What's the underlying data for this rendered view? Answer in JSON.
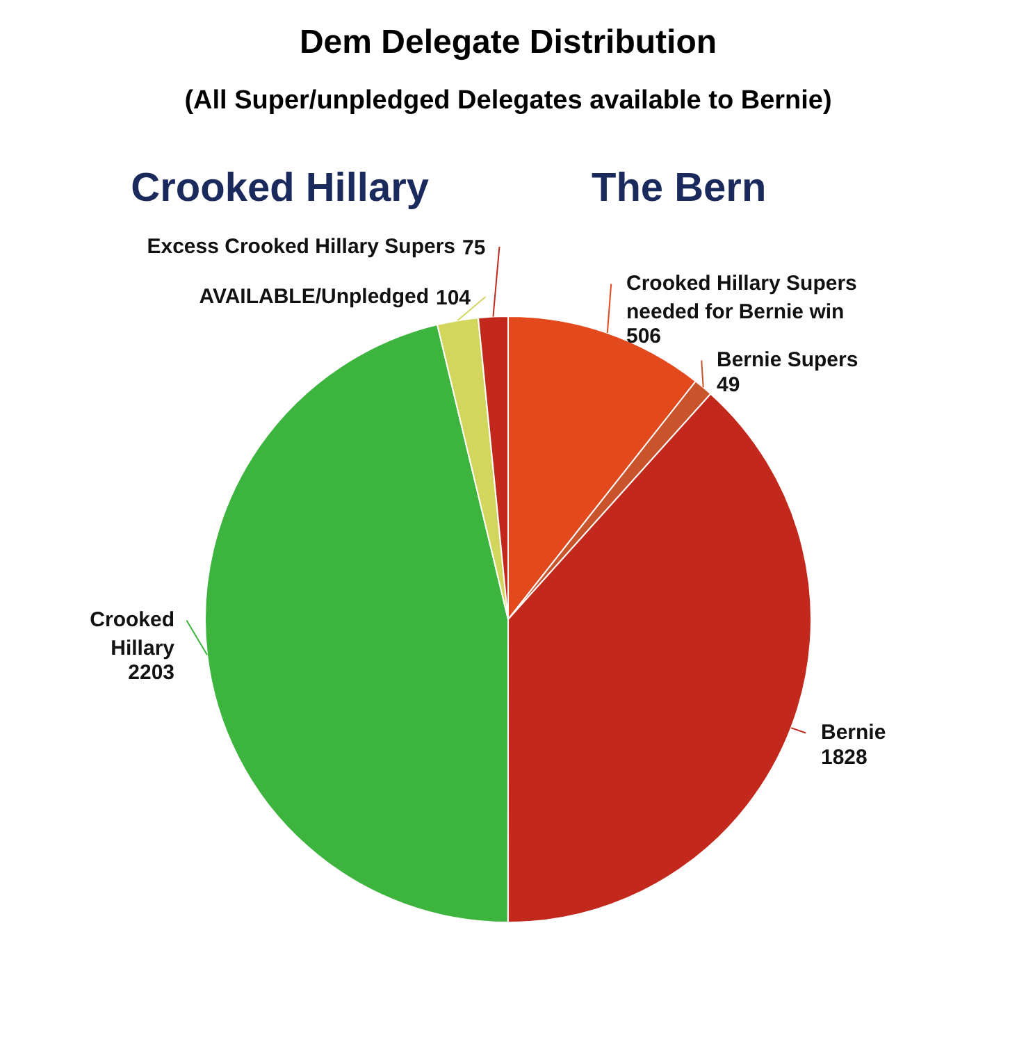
{
  "chart_data": {
    "type": "pie",
    "title": "Dem Delegate Distribution",
    "subtitle": "(All Super/unpledged Delegates available to Bernie)",
    "annotations": [
      "Crooked Hillary",
      "The Bern"
    ],
    "categories": [
      "Crooked Hillary Supers\nneeded for Bernie win",
      "Bernie Supers",
      "Bernie",
      "Crooked\nHillary",
      "AVAILABLE/Unpledged",
      "Excess Crooked Hillary Supers"
    ],
    "values": [
      506,
      49,
      1828,
      2203,
      104,
      75
    ],
    "colors": [
      "#e2491c",
      "#c9542c",
      "#c2281c",
      "#3cb43e",
      "#d2d65c",
      "#c2281c"
    ],
    "data_labels": true
  }
}
